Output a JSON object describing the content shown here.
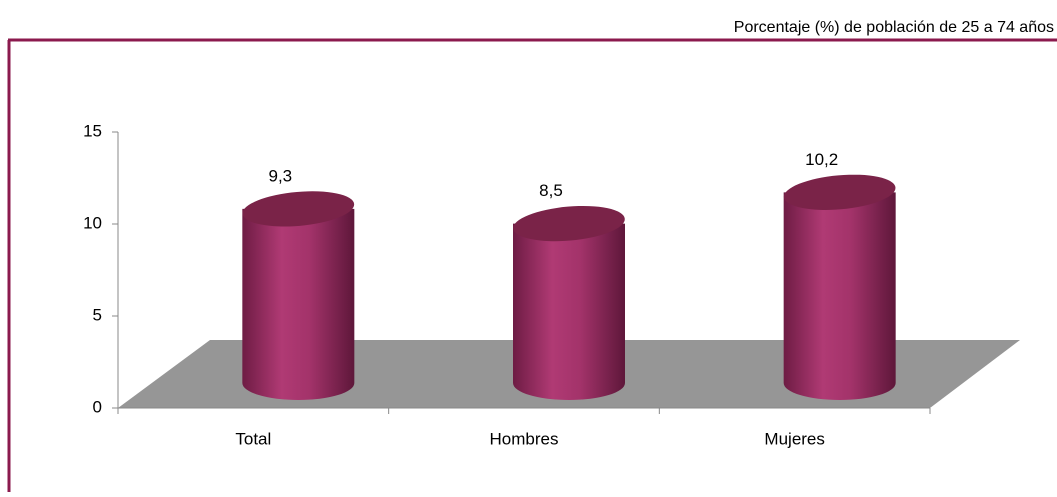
{
  "chart_data": {
    "type": "bar",
    "title": "Porcentaje (%) de población de 25 a 74 años",
    "categories": [
      "Total",
      "Hombres",
      "Mujeres"
    ],
    "values": [
      9.3,
      8.5,
      10.2
    ],
    "value_labels": [
      "9,3",
      "8,5",
      "10,2"
    ],
    "color": "#a3336a",
    "ylim": [
      0,
      15
    ],
    "yticks": [
      0,
      5,
      10,
      15
    ]
  }
}
